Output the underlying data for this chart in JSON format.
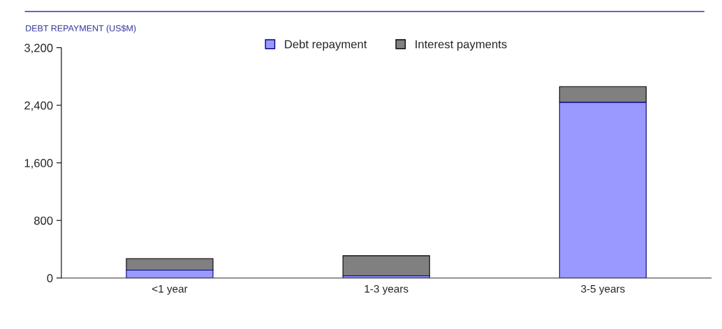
{
  "chart_data": {
    "type": "bar",
    "title": "DEBT REPAYMENT (US$M)",
    "categories": [
      "<1 year",
      "1-3 years",
      "3-5 years"
    ],
    "stacked": true,
    "series": [
      {
        "name": "Debt repayment",
        "color": "#9999ff",
        "values": [
          110,
          30,
          2440
        ]
      },
      {
        "name": "Interest payments",
        "color": "#808080",
        "values": [
          160,
          280,
          220
        ]
      }
    ],
    "ylim": [
      0,
      3200
    ],
    "yticks": [
      {
        "value": 0,
        "label": "0"
      },
      {
        "value": 800,
        "label": "800"
      },
      {
        "value": 1600,
        "label": "1,600"
      },
      {
        "value": 2400,
        "label": "2,400"
      },
      {
        "value": 3200,
        "label": "3,200"
      }
    ],
    "grid": false,
    "legend": "top"
  }
}
